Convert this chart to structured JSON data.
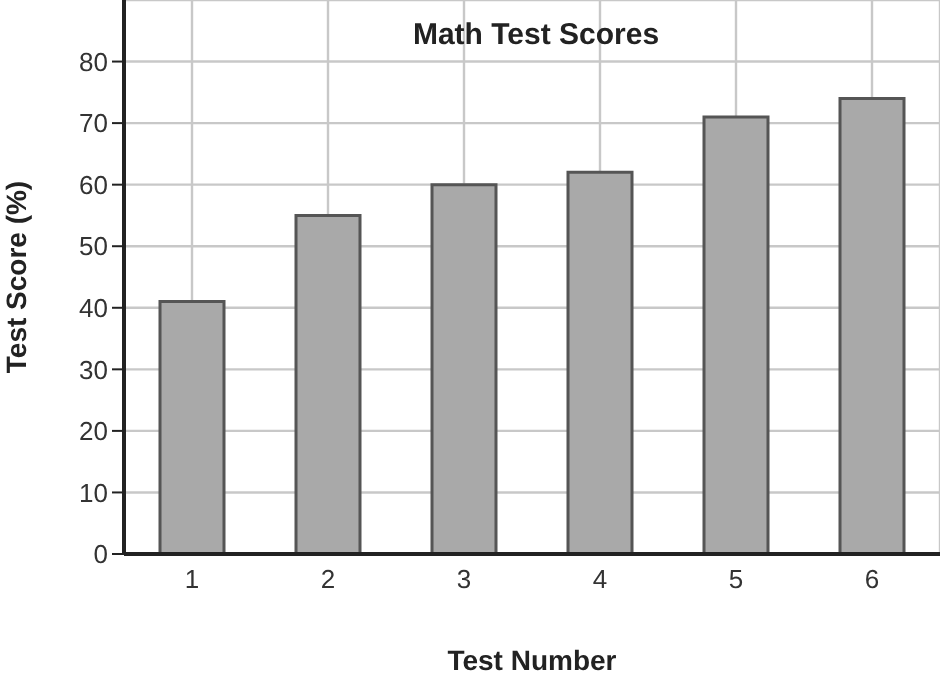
{
  "chart_data": {
    "type": "bar",
    "title": "Math Test Scores",
    "xlabel": "Test Number",
    "ylabel": "Test Score (%)",
    "categories": [
      "1",
      "2",
      "3",
      "4",
      "5",
      "6"
    ],
    "values": [
      41,
      55,
      60,
      62,
      71,
      74
    ],
    "color": "#a9a9a9",
    "ylim": [
      0,
      90
    ],
    "yticks": [
      0,
      10,
      20,
      30,
      40,
      50,
      60,
      70,
      80
    ],
    "grid": true
  }
}
